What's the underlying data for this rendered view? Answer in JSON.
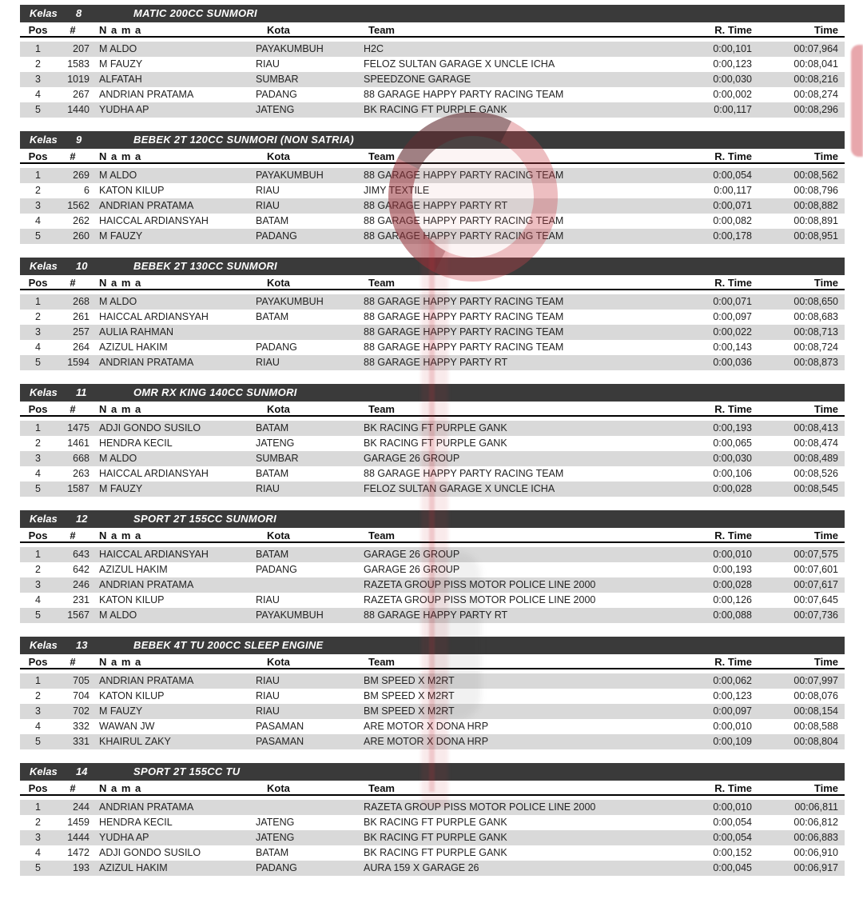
{
  "columns": [
    "Pos",
    "#",
    "N a m a",
    "Kota",
    "Team",
    "R. Time",
    "Time"
  ],
  "watermark": {
    "red": "#c6343c"
  },
  "sections": [
    {
      "kelas_word": "Kelas",
      "kelas_num": "8",
      "title": "MATIC 200CC SUNMORI",
      "rows": [
        {
          "pos": "1",
          "num": "207",
          "nama": "M ALDO",
          "kota": "PAYAKUMBUH",
          "team": "H2C",
          "rtime": "0:00,101",
          "time": "00:07,964"
        },
        {
          "pos": "2",
          "num": "1583",
          "nama": "M FAUZY",
          "kota": "RIAU",
          "team": "FELOZ SULTAN GARAGE X UNCLE ICHA",
          "rtime": "0:00,123",
          "time": "00:08,041"
        },
        {
          "pos": "3",
          "num": "1019",
          "nama": "ALFATAH",
          "kota": "SUMBAR",
          "team": "SPEEDZONE GARAGE",
          "rtime": "0:00,030",
          "time": "00:08,216"
        },
        {
          "pos": "4",
          "num": "267",
          "nama": "ANDRIAN PRATAMA",
          "kota": "PADANG",
          "team": "88 GARAGE HAPPY PARTY RACING TEAM",
          "rtime": "0:00,002",
          "time": "00:08,274"
        },
        {
          "pos": "5",
          "num": "1440",
          "nama": "YUDHA AP",
          "kota": "JATENG",
          "team": "BK RACING FT PURPLE GANK",
          "rtime": "0:00,117",
          "time": "00:08,296"
        }
      ]
    },
    {
      "kelas_word": "Kelas",
      "kelas_num": "9",
      "title": "BEBEK 2T 120CC SUNMORI (NON SATRIA)",
      "rows": [
        {
          "pos": "1",
          "num": "269",
          "nama": "M ALDO",
          "kota": "PAYAKUMBUH",
          "team": "88 GARAGE HAPPY PARTY RACING TEAM",
          "rtime": "0:00,054",
          "time": "00:08,562"
        },
        {
          "pos": "2",
          "num": "6",
          "nama": "KATON KILUP",
          "kota": "RIAU",
          "team": "JIMY TEXTILE",
          "rtime": "0:00,117",
          "time": "00:08,796"
        },
        {
          "pos": "3",
          "num": "1562",
          "nama": "ANDRIAN PRATAMA",
          "kota": "RIAU",
          "team": "88 GARAGE HAPPY PARTY RT",
          "rtime": "0:00,071",
          "time": "00:08,882"
        },
        {
          "pos": "4",
          "num": "262",
          "nama": "HAICCAL ARDIANSYAH",
          "kota": "BATAM",
          "team": "88 GARAGE HAPPY PARTY RACING TEAM",
          "rtime": "0:00,082",
          "time": "00:08,891"
        },
        {
          "pos": "5",
          "num": "260",
          "nama": "M FAUZY",
          "kota": "PADANG",
          "team": "88 GARAGE HAPPY PARTY RACING TEAM",
          "rtime": "0:00,178",
          "time": "00:08,951"
        }
      ]
    },
    {
      "kelas_word": "Kelas",
      "kelas_num": "10",
      "title": "BEBEK 2T 130CC SUNMORI",
      "rows": [
        {
          "pos": "1",
          "num": "268",
          "nama": "M ALDO",
          "kota": "PAYAKUMBUH",
          "team": "88 GARAGE HAPPY PARTY RACING TEAM",
          "rtime": "0:00,071",
          "time": "00:08,650"
        },
        {
          "pos": "2",
          "num": "261",
          "nama": "HAICCAL ARDIANSYAH",
          "kota": "BATAM",
          "team": "88 GARAGE HAPPY PARTY RACING TEAM",
          "rtime": "0:00,097",
          "time": "00:08,683"
        },
        {
          "pos": "3",
          "num": "257",
          "nama": "AULIA RAHMAN",
          "kota": "",
          "team": "88 GARAGE HAPPY PARTY RACING TEAM",
          "rtime": "0:00,022",
          "time": "00:08,713"
        },
        {
          "pos": "4",
          "num": "264",
          "nama": "AZIZUL HAKIM",
          "kota": "PADANG",
          "team": "88 GARAGE HAPPY PARTY RACING TEAM",
          "rtime": "0:00,143",
          "time": "00:08,724"
        },
        {
          "pos": "5",
          "num": "1594",
          "nama": "ANDRIAN PRATAMA",
          "kota": "RIAU",
          "team": "88 GARAGE HAPPY PARTY RT",
          "rtime": "0:00,036",
          "time": "00:08,873"
        }
      ]
    },
    {
      "kelas_word": "Kelas",
      "kelas_num": "11",
      "title": "OMR RX KING 140CC SUNMORI",
      "rows": [
        {
          "pos": "1",
          "num": "1475",
          "nama": "ADJI GONDO SUSILO",
          "kota": "BATAM",
          "team": "BK RACING FT PURPLE GANK",
          "rtime": "0:00,193",
          "time": "00:08,413"
        },
        {
          "pos": "2",
          "num": "1461",
          "nama": "HENDRA KECIL",
          "kota": "JATENG",
          "team": "BK RACING FT PURPLE GANK",
          "rtime": "0:00,065",
          "time": "00:08,474"
        },
        {
          "pos": "3",
          "num": "668",
          "nama": "M ALDO",
          "kota": "SUMBAR",
          "team": "GARAGE 26 GROUP",
          "rtime": "0:00,030",
          "time": "00:08,489"
        },
        {
          "pos": "4",
          "num": "263",
          "nama": "HAICCAL ARDIANSYAH",
          "kota": "BATAM",
          "team": "88 GARAGE HAPPY PARTY RACING TEAM",
          "rtime": "0:00,106",
          "time": "00:08,526"
        },
        {
          "pos": "5",
          "num": "1587",
          "nama": "M FAUZY",
          "kota": "RIAU",
          "team": "FELOZ SULTAN GARAGE X UNCLE ICHA",
          "rtime": "0:00,028",
          "time": "00:08,545"
        }
      ]
    },
    {
      "kelas_word": "Kelas",
      "kelas_num": "12",
      "title": "SPORT 2T 155CC SUNMORI",
      "rows": [
        {
          "pos": "1",
          "num": "643",
          "nama": "HAICCAL ARDIANSYAH",
          "kota": "BATAM",
          "team": "GARAGE 26 GROUP",
          "rtime": "0:00,010",
          "time": "00:07,575"
        },
        {
          "pos": "2",
          "num": "642",
          "nama": "AZIZUL HAKIM",
          "kota": "PADANG",
          "team": "GARAGE 26 GROUP",
          "rtime": "0:00,193",
          "time": "00:07,601"
        },
        {
          "pos": "3",
          "num": "246",
          "nama": "ANDRIAN PRATAMA",
          "kota": "",
          "team": "RAZETA GROUP PISS MOTOR POLICE LINE 2000",
          "rtime": "0:00,028",
          "time": "00:07,617"
        },
        {
          "pos": "4",
          "num": "231",
          "nama": "KATON KILUP",
          "kota": "RIAU",
          "team": "RAZETA GROUP PISS MOTOR POLICE LINE 2000",
          "rtime": "0:00,126",
          "time": "00:07,645"
        },
        {
          "pos": "5",
          "num": "1567",
          "nama": "M ALDO",
          "kota": "PAYAKUMBUH",
          "team": "88 GARAGE HAPPY PARTY RT",
          "rtime": "0:00,088",
          "time": "00:07,736"
        }
      ]
    },
    {
      "kelas_word": "Kelas",
      "kelas_num": "13",
      "title": "BEBEK 4T TU 200CC SLEEP ENGINE",
      "rows": [
        {
          "pos": "1",
          "num": "705",
          "nama": "ANDRIAN PRATAMA",
          "kota": "RIAU",
          "team": "BM SPEED X M2RT",
          "rtime": "0:00,062",
          "time": "00:07,997"
        },
        {
          "pos": "2",
          "num": "704",
          "nama": "KATON KILUP",
          "kota": "RIAU",
          "team": "BM SPEED X M2RT",
          "rtime": "0:00,123",
          "time": "00:08,076"
        },
        {
          "pos": "3",
          "num": "702",
          "nama": "M FAUZY",
          "kota": "RIAU",
          "team": "BM SPEED X M2RT",
          "rtime": "0:00,097",
          "time": "00:08,154"
        },
        {
          "pos": "4",
          "num": "332",
          "nama": "WAWAN JW",
          "kota": "PASAMAN",
          "team": "ARE MOTOR X DONA HRP",
          "rtime": "0:00,010",
          "time": "00:08,588"
        },
        {
          "pos": "5",
          "num": "331",
          "nama": "KHAIRUL ZAKY",
          "kota": "PASAMAN",
          "team": "ARE MOTOR X DONA HRP",
          "rtime": "0:00,109",
          "time": "00:08,804"
        }
      ]
    },
    {
      "kelas_word": "Kelas",
      "kelas_num": "14",
      "title": "SPORT 2T 155CC TU",
      "rows": [
        {
          "pos": "1",
          "num": "244",
          "nama": "ANDRIAN PRATAMA",
          "kota": "",
          "team": "RAZETA GROUP PISS MOTOR POLICE LINE 2000",
          "rtime": "0:00,010",
          "time": "00:06,811"
        },
        {
          "pos": "2",
          "num": "1459",
          "nama": "HENDRA KECIL",
          "kota": "JATENG",
          "team": "BK RACING FT PURPLE GANK",
          "rtime": "0:00,054",
          "time": "00:06,812"
        },
        {
          "pos": "3",
          "num": "1444",
          "nama": "YUDHA AP",
          "kota": "JATENG",
          "team": "BK RACING FT PURPLE GANK",
          "rtime": "0:00,054",
          "time": "00:06,883"
        },
        {
          "pos": "4",
          "num": "1472",
          "nama": "ADJI GONDO SUSILO",
          "kota": "BATAM",
          "team": "BK RACING FT PURPLE GANK",
          "rtime": "0:00,152",
          "time": "00:06,910"
        },
        {
          "pos": "5",
          "num": "193",
          "nama": "AZIZUL HAKIM",
          "kota": "PADANG",
          "team": "AURA 159 X GARAGE 26",
          "rtime": "0:00,045",
          "time": "00:06,917"
        }
      ]
    }
  ]
}
